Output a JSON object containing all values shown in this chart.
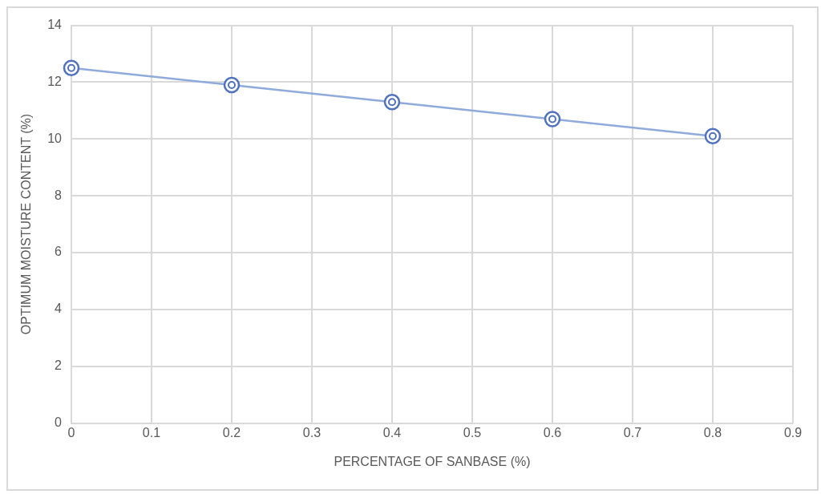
{
  "chart_data": {
    "type": "line",
    "xlabel": "PERCENTAGE OF SANBASE (%)",
    "ylabel": "OPTIMUM MOISTURE CONTENT (%)",
    "x": [
      0,
      0.2,
      0.4,
      0.6,
      0.8
    ],
    "series": [
      {
        "color": "#8faadc",
        "values": [
          12.5,
          11.9,
          11.3,
          10.7,
          10.1
        ]
      }
    ],
    "xlim": [
      0,
      0.9
    ],
    "xticks": [
      0,
      0.1,
      0.2,
      0.3,
      0.4,
      0.5,
      0.6,
      0.7,
      0.8,
      0.9
    ],
    "ylim": [
      0,
      14
    ],
    "yticks": [
      0,
      2,
      4,
      6,
      8,
      10,
      12,
      14
    ],
    "grid": true,
    "marker": "circle",
    "line_style": "solid",
    "legend": false
  }
}
